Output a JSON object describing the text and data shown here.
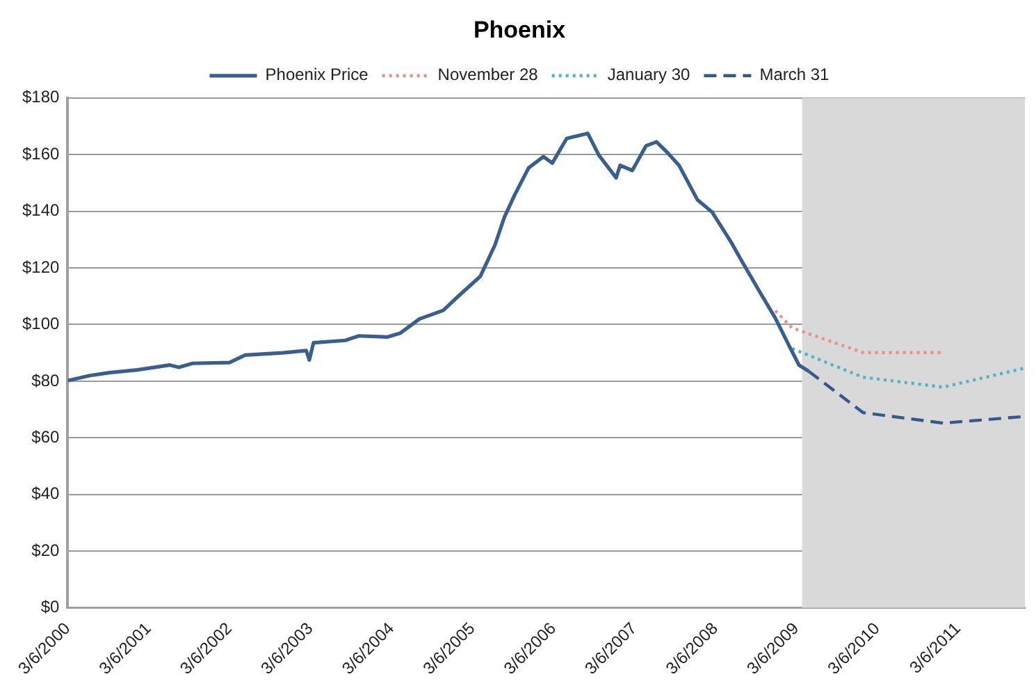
{
  "chart_data": {
    "type": "line",
    "title": "Phoenix",
    "series": [
      {
        "name": "Phoenix Price",
        "color": "#3a5f8f",
        "line_style": "solid",
        "x": [
          "2000-03-06",
          "2000-06-15",
          "2000-09-10",
          "2001-01-15",
          "2001-06-10",
          "2001-07-20",
          "2001-09-20",
          "2002-03-06",
          "2002-05-15",
          "2002-11-01",
          "2003-02-15",
          "2003-03-01",
          "2003-03-20",
          "2003-08-10",
          "2003-10-10",
          "2004-02-15",
          "2004-04-15",
          "2004-07-10",
          "2004-10-25",
          "2005-01-01",
          "2005-04-10",
          "2005-06-15",
          "2005-07-28",
          "2005-09-12",
          "2005-11-14",
          "2006-01-20",
          "2006-03-01",
          "2006-05-05",
          "2006-08-08",
          "2006-09-28",
          "2006-12-14",
          "2007-01-01",
          "2007-02-25",
          "2007-04-28",
          "2007-06-14",
          "2007-08-05",
          "2007-09-24",
          "2007-12-16",
          "2008-02-20",
          "2008-05-15",
          "2008-06-28",
          "2008-09-20",
          "2008-12-01",
          "2009-02-06",
          "2009-03-18",
          "2009-05-01"
        ],
        "values": [
          80.2,
          82,
          83,
          84,
          85.7,
          84.9,
          86.3,
          86.6,
          89.2,
          90,
          90.8,
          87.5,
          93.6,
          94.4,
          96,
          95.6,
          97,
          102,
          105,
          110,
          117,
          128,
          137.9,
          145.7,
          155.3,
          159.3,
          157,
          165.7,
          167.5,
          159.7,
          151.8,
          156.2,
          154.4,
          163.1,
          164.5,
          160.5,
          156.2,
          144,
          139.7,
          129.2,
          123.1,
          111.8,
          102.3,
          91.8,
          85.7,
          83.5
        ]
      },
      {
        "name": "November 28",
        "color": "#e8908a",
        "line_style": "dotted",
        "x": [
          "2008-12-01",
          "2009-02-15",
          "2010-01-01",
          "2010-12-28"
        ],
        "values": [
          104.9,
          98.8,
          90.1,
          90.1
        ]
      },
      {
        "name": "January 30",
        "color": "#4bb5c1",
        "line_style": "dotted",
        "x": [
          "2009-02-15",
          "2010-01-01",
          "2010-12-28",
          "2011-12-25"
        ],
        "values": [
          91.5,
          81.4,
          77.9,
          84.5
        ]
      },
      {
        "name": "March 31",
        "color": "#35598a",
        "line_style": "dashed",
        "x": [
          "2009-05-01",
          "2010-01-01",
          "2010-12-28",
          "2011-12-25"
        ],
        "values": [
          83.5,
          68.9,
          65.2,
          67.5
        ]
      }
    ],
    "xlim": [
      "2000-03-06",
      "2012-01-01"
    ],
    "xticks": [
      {
        "value": "2000-03-06",
        "label": "3/6/2000"
      },
      {
        "value": "2001-03-06",
        "label": "3/6/2001"
      },
      {
        "value": "2002-03-06",
        "label": "3/6/2002"
      },
      {
        "value": "2003-03-06",
        "label": "3/6/2003"
      },
      {
        "value": "2004-03-06",
        "label": "3/6/2004"
      },
      {
        "value": "2005-03-06",
        "label": "3/6/2005"
      },
      {
        "value": "2006-03-06",
        "label": "3/6/2006"
      },
      {
        "value": "2007-03-06",
        "label": "3/6/2007"
      },
      {
        "value": "2008-03-06",
        "label": "3/6/2008"
      },
      {
        "value": "2009-03-06",
        "label": "3/6/2009"
      },
      {
        "value": "2010-03-06",
        "label": "3/6/2010"
      },
      {
        "value": "2011-03-06",
        "label": "3/6/2011"
      }
    ],
    "ylim": [
      0,
      180
    ],
    "yticks": [
      {
        "value": 0,
        "label": "$0"
      },
      {
        "value": 20,
        "label": "$20"
      },
      {
        "value": 40,
        "label": "$40"
      },
      {
        "value": 60,
        "label": "$60"
      },
      {
        "value": 80,
        "label": "$80"
      },
      {
        "value": 100,
        "label": "$100"
      },
      {
        "value": 120,
        "label": "$120"
      },
      {
        "value": 140,
        "label": "$140"
      },
      {
        "value": 160,
        "label": "$160"
      },
      {
        "value": 180,
        "label": "$180"
      }
    ],
    "bands": [
      {
        "axis": "x",
        "from": "2009-04-01",
        "to": "2012-01-01",
        "color": "#d9d9d9"
      }
    ],
    "grid": "y",
    "legend": "top",
    "marker": "none"
  }
}
